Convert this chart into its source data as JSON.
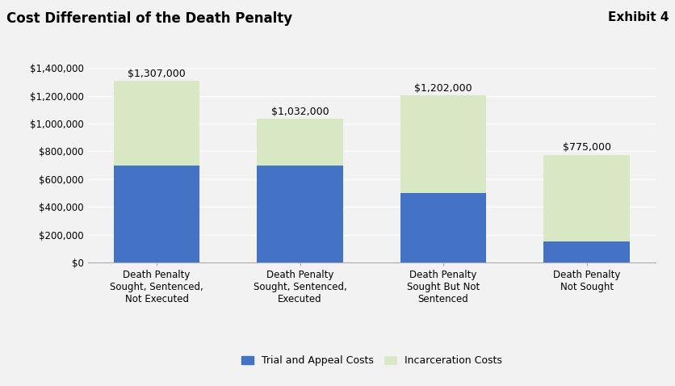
{
  "title": "Cost Differential of the Death Penalty",
  "exhibit": "Exhibit 4",
  "categories": [
    "Death Penalty\nSought, Sentenced,\nNot Executed",
    "Death Penalty\nSought, Sentenced,\nExecuted",
    "Death Penalty\nSought But Not\nSentenced",
    "Death Penalty\nNot Sought"
  ],
  "trial_appeal_costs": [
    700000,
    700000,
    500000,
    150000
  ],
  "incarceration_costs": [
    607000,
    332000,
    702000,
    625000
  ],
  "totals": [
    1307000,
    1032000,
    1202000,
    775000
  ],
  "total_labels": [
    "$1,307,000",
    "$1,032,000",
    "$1,202,000",
    "$775,000"
  ],
  "bar_color_trial": "#4472C4",
  "bar_color_incarc": "#D9E8C4",
  "ylim": [
    0,
    1500000
  ],
  "yticks": [
    0,
    200000,
    400000,
    600000,
    800000,
    1000000,
    1200000,
    1400000
  ],
  "ytick_labels": [
    "$0",
    "$200,000",
    "$400,000",
    "$600,000",
    "$800,000",
    "$1,000,000",
    "$1,200,000",
    "$1,400,000"
  ],
  "legend_trial": "Trial and Appeal Costs",
  "legend_incarc": "Incarceration Costs",
  "background_color": "#F2F2F2",
  "plot_bg_color": "#F2F2F2",
  "grid_color": "#FFFFFF",
  "bar_width": 0.6,
  "title_fontsize": 12,
  "exhibit_fontsize": 11,
  "annotation_fontsize": 9,
  "tick_fontsize": 8.5,
  "legend_fontsize": 9
}
